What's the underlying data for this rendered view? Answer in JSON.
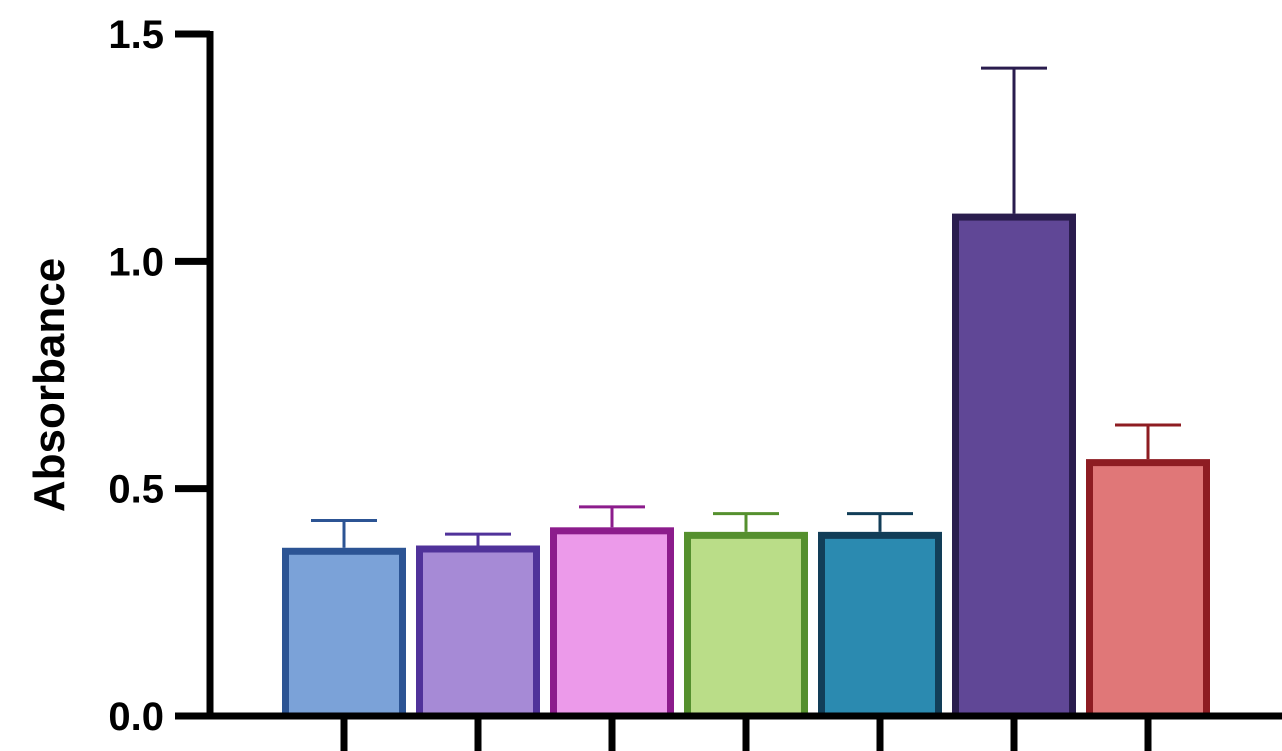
{
  "chart_data": {
    "type": "bar",
    "categories": [
      "",
      "",
      "",
      "",
      "",
      "",
      ""
    ],
    "values": [
      0.37,
      0.375,
      0.415,
      0.405,
      0.405,
      1.105,
      0.565
    ],
    "errors": [
      0.06,
      0.025,
      0.045,
      0.04,
      0.04,
      0.32,
      0.075
    ],
    "fill_colors": [
      "#7ba2d8",
      "#a68ad6",
      "#ec9aea",
      "#badd88",
      "#2b8ab0",
      "#604796",
      "#e07778"
    ],
    "edge_colors": [
      "#2c5494",
      "#50329a",
      "#8c1c8c",
      "#55902e",
      "#123e58",
      "#2a1d4e",
      "#8e1c22"
    ],
    "title": "",
    "xlabel": "",
    "ylabel": "Absorbance",
    "ylim": [
      0,
      1.5
    ],
    "yticks": [
      0.0,
      0.5,
      1.0,
      1.5
    ],
    "ytick_labels": [
      "0.0",
      "0.5",
      "1.0",
      "1.5"
    ],
    "grid": false,
    "legend": "none"
  }
}
